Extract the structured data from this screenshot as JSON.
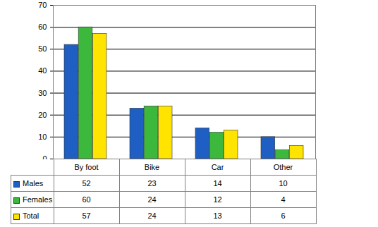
{
  "chart_data": {
    "type": "bar",
    "categories": [
      "By foot",
      "Bike",
      "Car",
      "Other"
    ],
    "series": [
      {
        "name": "Males",
        "color": "#1f5fc4",
        "values": [
          52,
          23,
          14,
          10
        ]
      },
      {
        "name": "Females",
        "color": "#3cb83c",
        "values": [
          60,
          24,
          12,
          4
        ]
      },
      {
        "name": "Total",
        "color": "#ffe400",
        "values": [
          57,
          24,
          13,
          6
        ]
      }
    ],
    "ylim": [
      0,
      70
    ],
    "yticks": [
      0,
      10,
      20,
      30,
      40,
      50,
      60,
      70
    ],
    "grid": true
  }
}
